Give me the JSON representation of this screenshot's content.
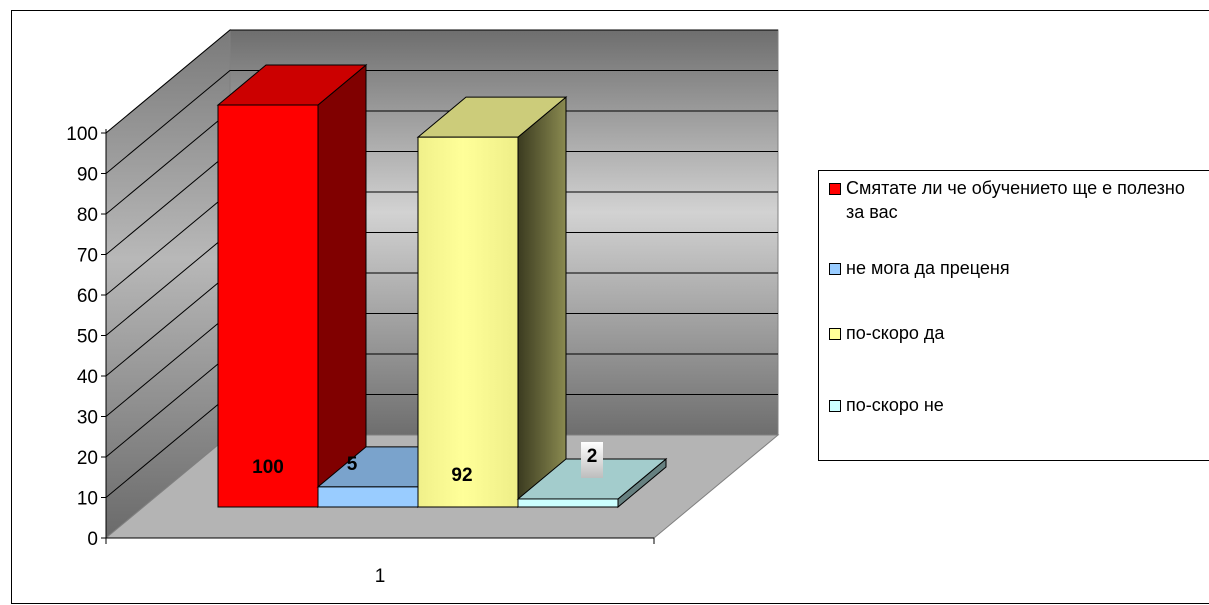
{
  "chart_data": {
    "type": "bar",
    "title": "",
    "xlabel": "",
    "ylabel": "",
    "categories": [
      "1"
    ],
    "ylim": [
      0,
      100
    ],
    "yticks": [
      0,
      10,
      20,
      30,
      40,
      50,
      60,
      70,
      80,
      90,
      100
    ],
    "grid": true,
    "legend_position": "right",
    "style": "3d-column",
    "series": [
      {
        "name": "Смятате ли че обучението ще е полезно за вас",
        "values": [
          100
        ],
        "color": "#ff0000",
        "label": "100"
      },
      {
        "name": "не мога да преценя",
        "values": [
          5
        ],
        "color": "#99ccff",
        "label": "5"
      },
      {
        "name": "по-скоро да",
        "values": [
          92
        ],
        "color": "#ffff99",
        "label": "92"
      },
      {
        "name": "по-скоро не",
        "values": [
          2
        ],
        "color": "#ccffff",
        "label": "2"
      }
    ]
  }
}
